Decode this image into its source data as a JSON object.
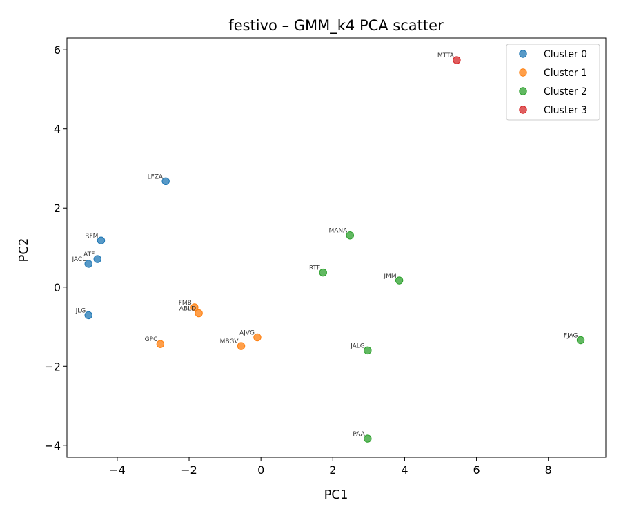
{
  "chart_data": {
    "type": "scatter",
    "title": "festivo – GMM_k4 PCA scatter",
    "xlabel": "PC1",
    "ylabel": "PC2",
    "xlim": [
      -5.4,
      9.6
    ],
    "ylim": [
      -4.3,
      6.3
    ],
    "xticks": [
      -4,
      -2,
      0,
      2,
      4,
      6,
      8
    ],
    "yticks": [
      -4,
      -2,
      0,
      2,
      4,
      6
    ],
    "tick_labels_x": [
      "−4",
      "−2",
      "0",
      "2",
      "4",
      "6",
      "8"
    ],
    "tick_labels_y": [
      "−4",
      "−2",
      "0",
      "2",
      "4",
      "6"
    ],
    "grid": false,
    "legend_position": "top-right",
    "series": [
      {
        "name": "Cluster 0",
        "color": "#1f77b4",
        "points": [
          {
            "label": "LFZA",
            "x": -2.65,
            "y": 2.68
          },
          {
            "label": "RFM",
            "x": -4.45,
            "y": 1.18
          },
          {
            "label": "ATF",
            "x": -4.55,
            "y": 0.71
          },
          {
            "label": "JACL",
            "x": -4.8,
            "y": 0.59
          },
          {
            "label": "JLG",
            "x": -4.8,
            "y": -0.71
          }
        ]
      },
      {
        "name": "Cluster 1",
        "color": "#ff7f0e",
        "points": [
          {
            "label": "FMB",
            "x": -1.85,
            "y": -0.51
          },
          {
            "label": "ABLD",
            "x": -1.73,
            "y": -0.66
          },
          {
            "label": "GPC",
            "x": -2.8,
            "y": -1.44
          },
          {
            "label": "AJVG",
            "x": -0.1,
            "y": -1.27
          },
          {
            "label": "MBGV",
            "x": -0.55,
            "y": -1.49
          }
        ]
      },
      {
        "name": "Cluster 2",
        "color": "#2ca02c",
        "points": [
          {
            "label": "MANA",
            "x": 2.48,
            "y": 1.31
          },
          {
            "label": "RTF",
            "x": 1.73,
            "y": 0.37
          },
          {
            "label": "JMM",
            "x": 3.85,
            "y": 0.17
          },
          {
            "label": "JALG",
            "x": 2.97,
            "y": -1.6
          },
          {
            "label": "FJAG",
            "x": 8.9,
            "y": -1.34
          },
          {
            "label": "PAA",
            "x": 2.97,
            "y": -3.83
          }
        ]
      },
      {
        "name": "Cluster 3",
        "color": "#d62728",
        "points": [
          {
            "label": "MTTA",
            "x": 5.45,
            "y": 5.74
          }
        ]
      }
    ]
  }
}
